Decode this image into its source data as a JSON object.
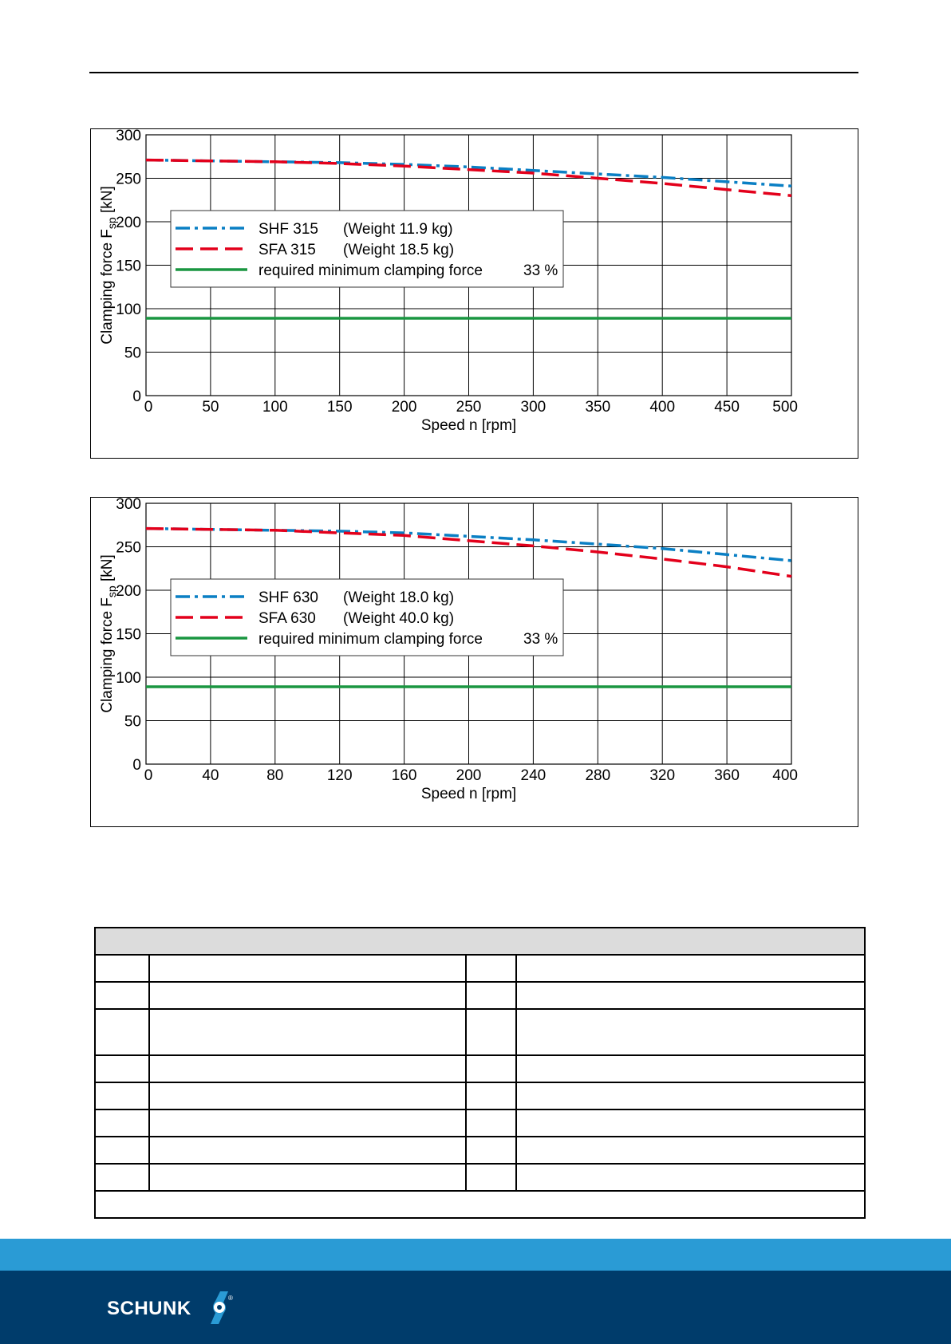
{
  "brand": {
    "name": "SCHUNK",
    "mark": "®",
    "accent": "#2a9bd5",
    "dark": "#003c6b"
  },
  "chart_data": [
    {
      "type": "line",
      "ylabel_main": "Clamping force F",
      "ylabel_sub": "sp",
      "ylabel_unit": " [kN]",
      "xlabel": "Speed n [rpm]",
      "xlim": [
        0,
        500
      ],
      "ylim": [
        0,
        300
      ],
      "xticks": [
        0,
        50,
        100,
        150,
        200,
        250,
        300,
        350,
        400,
        450,
        500
      ],
      "yticks": [
        0,
        50,
        100,
        150,
        200,
        250,
        300
      ],
      "grid": true,
      "legend_position": "upper-left",
      "series": [
        {
          "name": "SHF 315",
          "note": "(Weight 11.9 kg)",
          "color": "#0a7fc4",
          "dash": "dashdot",
          "x": [
            0,
            50,
            100,
            150,
            200,
            250,
            300,
            350,
            400,
            450,
            500
          ],
          "y": [
            271,
            270,
            269,
            268,
            266,
            263,
            259,
            255,
            251,
            246,
            241
          ]
        },
        {
          "name": "SFA 315",
          "note": "(Weight 18.5 kg)",
          "color": "#e3001b",
          "dash": "dashed",
          "x": [
            0,
            50,
            100,
            150,
            200,
            250,
            300,
            350,
            400,
            450,
            500
          ],
          "y": [
            271,
            270,
            269,
            267,
            264,
            260,
            256,
            250,
            244,
            237,
            230
          ]
        },
        {
          "name": "required minimum clamping force",
          "note": "33 %",
          "color": "#1a9641",
          "dash": "solid",
          "x": [
            0,
            500
          ],
          "y": [
            89,
            89
          ]
        }
      ]
    },
    {
      "type": "line",
      "ylabel_main": "Clamping force F",
      "ylabel_sub": "sp",
      "ylabel_unit": " [kN]",
      "xlabel": "Speed n [rpm]",
      "xlim": [
        0,
        400
      ],
      "ylim": [
        0,
        300
      ],
      "xticks": [
        0,
        40,
        80,
        120,
        160,
        200,
        240,
        280,
        320,
        360,
        400
      ],
      "yticks": [
        0,
        50,
        100,
        150,
        200,
        250,
        300
      ],
      "grid": true,
      "legend_position": "center-left",
      "series": [
        {
          "name": "SHF 630",
          "note": "(Weight 18.0 kg)",
          "color": "#0a7fc4",
          "dash": "dashdot",
          "x": [
            0,
            40,
            80,
            120,
            160,
            200,
            240,
            280,
            320,
            360,
            400
          ],
          "y": [
            271,
            270,
            269,
            268,
            266,
            262,
            258,
            253,
            248,
            241,
            234
          ]
        },
        {
          "name": "SFA 630",
          "note": "(Weight 40.0 kg)",
          "color": "#e3001b",
          "dash": "dashed",
          "x": [
            0,
            40,
            80,
            120,
            160,
            200,
            240,
            280,
            320,
            360,
            400
          ],
          "y": [
            271,
            270,
            269,
            266,
            263,
            257,
            251,
            244,
            236,
            227,
            216
          ]
        },
        {
          "name": "required minimum clamping force",
          "note": "33 %",
          "color": "#1a9641",
          "dash": "solid",
          "x": [
            0,
            400
          ],
          "y": [
            89,
            89
          ]
        }
      ]
    }
  ]
}
